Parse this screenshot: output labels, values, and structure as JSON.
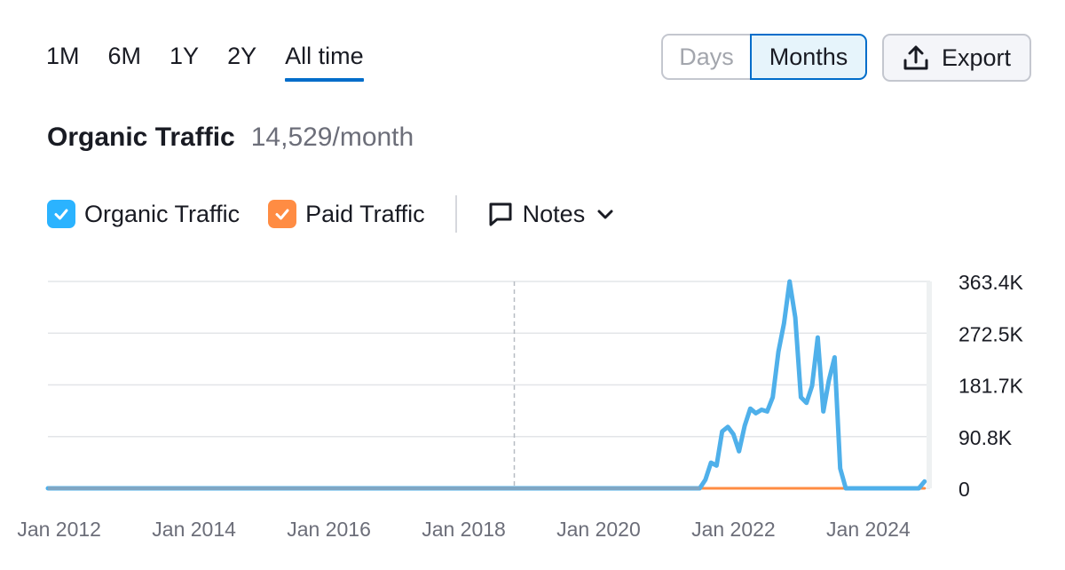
{
  "range_tabs": [
    "1M",
    "6M",
    "1Y",
    "2Y",
    "All time"
  ],
  "active_range": "All time",
  "granularity": {
    "days_label": "Days",
    "months_label": "Months",
    "selected": "Months"
  },
  "export_label": "Export",
  "header": {
    "title": "Organic Traffic",
    "value": "14,529/month"
  },
  "legend": {
    "organic": {
      "label": "Organic Traffic",
      "color": "#2bb3ff",
      "checked": true
    },
    "paid": {
      "label": "Paid Traffic",
      "color": "#ff8c43",
      "checked": true
    },
    "notes_label": "Notes"
  },
  "chart_data": {
    "type": "line",
    "title": "",
    "xlabel": "",
    "ylabel": "",
    "x_range": [
      "2011-11",
      "2024-12"
    ],
    "ylim": [
      0,
      363400
    ],
    "y_tick_labels": [
      "0",
      "90.8K",
      "181.7K",
      "272.5K",
      "363.4K"
    ],
    "y_ticks": [
      0,
      90800,
      181700,
      272500,
      363400
    ],
    "x_tick_labels": [
      "Jan 2012",
      "Jan 2014",
      "Jan 2016",
      "Jan 2018",
      "Jan 2020",
      "Jan 2022",
      "Jan 2024"
    ],
    "x_ticks": [
      "2012-01",
      "2014-01",
      "2016-01",
      "2018-01",
      "2020-01",
      "2022-01",
      "2024-01"
    ],
    "vertical_marker": "2018-10",
    "grid": true,
    "series": [
      {
        "name": "Organic Traffic",
        "color": "#4fb0ea",
        "points": [
          [
            "2011-11",
            0
          ],
          [
            "2021-07",
            0
          ],
          [
            "2021-08",
            15000
          ],
          [
            "2021-09",
            45000
          ],
          [
            "2021-10",
            40000
          ],
          [
            "2021-11",
            100000
          ],
          [
            "2021-12",
            108000
          ],
          [
            "2022-01",
            95000
          ],
          [
            "2022-02",
            65000
          ],
          [
            "2022-03",
            110000
          ],
          [
            "2022-04",
            140000
          ],
          [
            "2022-05",
            132000
          ],
          [
            "2022-06",
            138000
          ],
          [
            "2022-07",
            135000
          ],
          [
            "2022-08",
            160000
          ],
          [
            "2022-09",
            240000
          ],
          [
            "2022-10",
            290000
          ],
          [
            "2022-11",
            363400
          ],
          [
            "2022-12",
            300000
          ],
          [
            "2023-01",
            160000
          ],
          [
            "2023-02",
            150000
          ],
          [
            "2023-03",
            180000
          ],
          [
            "2023-04",
            265000
          ],
          [
            "2023-05",
            135000
          ],
          [
            "2023-06",
            190000
          ],
          [
            "2023-07",
            230000
          ],
          [
            "2023-08",
            35000
          ],
          [
            "2023-09",
            0
          ],
          [
            "2024-10",
            0
          ],
          [
            "2024-11",
            12000
          ]
        ]
      },
      {
        "name": "Paid Traffic",
        "color": "#ff8c43",
        "points": [
          [
            "2011-11",
            0
          ],
          [
            "2024-11",
            0
          ]
        ]
      }
    ]
  }
}
